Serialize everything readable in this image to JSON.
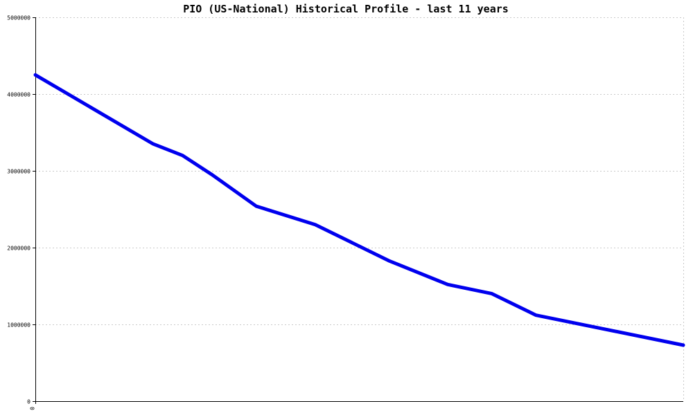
{
  "chart_data": {
    "type": "line",
    "title": "PIO (US-National) Historical Profile - last 11 years",
    "xlabel": "",
    "ylabel": "",
    "ylim": [
      0,
      5000000
    ],
    "yticks": [
      {
        "value": 0,
        "label": "0"
      },
      {
        "value": 1000000,
        "label": "1000000"
      },
      {
        "value": 2000000,
        "label": "2000000"
      },
      {
        "value": 3000000,
        "label": "3000000"
      },
      {
        "value": 4000000,
        "label": "4000000"
      },
      {
        "value": 5000000,
        "label": "5000000"
      }
    ],
    "xticks": [
      {
        "value": 0,
        "label": "0"
      }
    ],
    "xlim": [
      0,
      22
    ],
    "grid": true,
    "series": [
      {
        "color": "#0000ee",
        "x": [
          0,
          4,
          5,
          6,
          7.5,
          9.5,
          12,
          14,
          15.5,
          17,
          22
        ],
        "y": [
          4250000,
          3350000,
          3200000,
          2950000,
          2540000,
          2300000,
          1830000,
          1520000,
          1400000,
          1120000,
          730000
        ]
      }
    ]
  }
}
